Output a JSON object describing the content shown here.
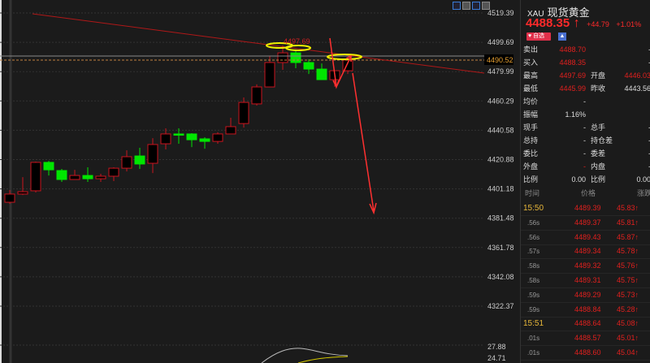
{
  "toolbar": {
    "icons": [
      "grid-icon",
      "chart-icon",
      "play-icon",
      "minus-icon"
    ]
  },
  "chart_data": {
    "type": "candlestick",
    "ylim": [
      4315,
      4522
    ],
    "y_ticks": [
      4519.39,
      4499.69,
      4479.99,
      4460.29,
      4440.58,
      4420.88,
      4401.18,
      4381.48,
      4361.78,
      4342.08,
      4322.37
    ],
    "current_price_label": "4490.52",
    "high_annotation": "4497.69",
    "up_color": "#c8141e",
    "down_color": "#00e600",
    "candles": [
      {
        "o": 4392.2,
        "h": 4400.4,
        "l": 4391.1,
        "c": 4397.7
      },
      {
        "o": 4397.7,
        "h": 4409.1,
        "l": 4397.1,
        "c": 4399.3
      },
      {
        "o": 4399.9,
        "h": 4419.5,
        "l": 4398.8,
        "c": 4419.0
      },
      {
        "o": 4419.0,
        "h": 4420.0,
        "l": 4410.2,
        "c": 4414.0
      },
      {
        "o": 4413.5,
        "h": 4414.6,
        "l": 4405.9,
        "c": 4407.5
      },
      {
        "o": 4407.5,
        "h": 4414.0,
        "l": 4407.5,
        "c": 4410.2
      },
      {
        "o": 4410.2,
        "h": 4415.7,
        "l": 4405.9,
        "c": 4408.0
      },
      {
        "o": 4408.0,
        "h": 4411.3,
        "l": 4405.9,
        "c": 4409.7
      },
      {
        "o": 4409.7,
        "h": 4415.7,
        "l": 4406.4,
        "c": 4415.1
      },
      {
        "o": 4415.1,
        "h": 4427.1,
        "l": 4412.9,
        "c": 4422.8
      },
      {
        "o": 4423.3,
        "h": 4428.8,
        "l": 4414.6,
        "c": 4417.9
      },
      {
        "o": 4418.4,
        "h": 4435.3,
        "l": 4411.8,
        "c": 4431.0
      },
      {
        "o": 4431.5,
        "h": 4441.9,
        "l": 4427.7,
        "c": 4438.1
      },
      {
        "o": 4438.1,
        "h": 4441.9,
        "l": 4431.5,
        "c": 4437.9
      },
      {
        "o": 4438.1,
        "h": 4438.6,
        "l": 4429.3,
        "c": 4434.2
      },
      {
        "o": 4434.8,
        "h": 4435.9,
        "l": 4428.2,
        "c": 4433.1
      },
      {
        "o": 4433.1,
        "h": 4439.2,
        "l": 4431.5,
        "c": 4438.1
      },
      {
        "o": 4438.1,
        "h": 4449.0,
        "l": 4438.1,
        "c": 4443.0
      },
      {
        "o": 4445.1,
        "h": 4462.6,
        "l": 4442.4,
        "c": 4459.3
      },
      {
        "o": 4458.3,
        "h": 4471.4,
        "l": 4457.2,
        "c": 4469.7
      },
      {
        "o": 4469.7,
        "h": 4490.5,
        "l": 4469.7,
        "c": 4486.1
      },
      {
        "o": 4486.1,
        "h": 4497.69,
        "l": 4481.2,
        "c": 4492.6
      },
      {
        "o": 4492.6,
        "h": 4494.8,
        "l": 4482.3,
        "c": 4486.1
      },
      {
        "o": 4486.1,
        "h": 4488.3,
        "l": 4478.4,
        "c": 4481.7
      },
      {
        "o": 4481.7,
        "h": 4485.5,
        "l": 4474.6,
        "c": 4474.6
      },
      {
        "o": 4474.6,
        "h": 4480.6,
        "l": 4469.7,
        "c": 4480.6
      },
      {
        "o": 4480.6,
        "h": 4489.4,
        "l": 4478.4,
        "c": 4487.7
      }
    ],
    "indicator": {
      "y_ticks": [
        "27.88",
        "24.71"
      ],
      "colors": [
        "#bbbbbb",
        "#d4c800"
      ]
    }
  },
  "quote": {
    "code": "XAU",
    "name": "现货黄金",
    "price": "4488.35",
    "arrow": "↑",
    "change": "+44.79",
    "change_pct": "+1.01%",
    "watch_label": "自选",
    "rows": [
      {
        "l1": "卖出",
        "v1": "4488.70",
        "l2": "",
        "v2": "-",
        "c1": "red",
        "c2": "wh"
      },
      {
        "l1": "买入",
        "v1": "4488.35",
        "l2": "",
        "v2": "-",
        "c1": "red",
        "c2": "wh"
      },
      {
        "l1": "最高",
        "v1": "4497.69",
        "l2": "开盘",
        "v2": "4446.03",
        "c1": "red",
        "c2": "red"
      },
      {
        "l1": "最低",
        "v1": "4445.99",
        "l2": "昨收",
        "v2": "4443.56",
        "c1": "red",
        "c2": "wh"
      },
      {
        "l1": "均价",
        "v1": "-",
        "l2": "",
        "v2": "",
        "c1": "wh",
        "c2": "wh"
      },
      {
        "l1": "振幅",
        "v1": "1.16%",
        "l2": "",
        "v2": "",
        "c1": "wh",
        "c2": "wh"
      },
      {
        "l1": "现手",
        "v1": "-",
        "l2": "总手",
        "v2": "-",
        "c1": "wh",
        "c2": "wh"
      },
      {
        "l1": "总持",
        "v1": "-",
        "l2": "持仓差",
        "v2": "-",
        "c1": "wh",
        "c2": "wh"
      },
      {
        "l1": "委比",
        "v1": "-",
        "l2": "委差",
        "v2": "-",
        "c1": "wh",
        "c2": "wh"
      },
      {
        "l1": "外盘",
        "v1": "-",
        "l2": "内盘",
        "v2": "-",
        "c1": "red",
        "c2": "wh"
      },
      {
        "l1": "比例",
        "v1": "0.00",
        "l2": "比例",
        "v2": "0.00",
        "c1": "wh",
        "c2": "wh"
      }
    ]
  },
  "ticks": {
    "headers": [
      "时间",
      "价格",
      "涨跌"
    ],
    "rows": [
      {
        "t": "15:50",
        "p": "4489.39",
        "c": "45.83↑",
        "major": true
      },
      {
        "t": ".56s",
        "p": "4489.37",
        "c": "45.81↑"
      },
      {
        "t": ".56s",
        "p": "4489.43",
        "c": "45.87↑"
      },
      {
        "t": ".57s",
        "p": "4489.34",
        "c": "45.78↑"
      },
      {
        "t": ".58s",
        "p": "4489.32",
        "c": "45.76↑"
      },
      {
        "t": ".58s",
        "p": "4489.31",
        "c": "45.75↑"
      },
      {
        "t": ".59s",
        "p": "4489.29",
        "c": "45.73↑"
      },
      {
        "t": ".59s",
        "p": "4488.84",
        "c": "45.28↑"
      },
      {
        "t": "15:51",
        "p": "4488.64",
        "c": "45.08↑",
        "major": true
      },
      {
        "t": ".01s",
        "p": "4488.57",
        "c": "45.01↑"
      },
      {
        "t": ".01s",
        "p": "4488.60",
        "c": "45.04↑"
      }
    ]
  }
}
